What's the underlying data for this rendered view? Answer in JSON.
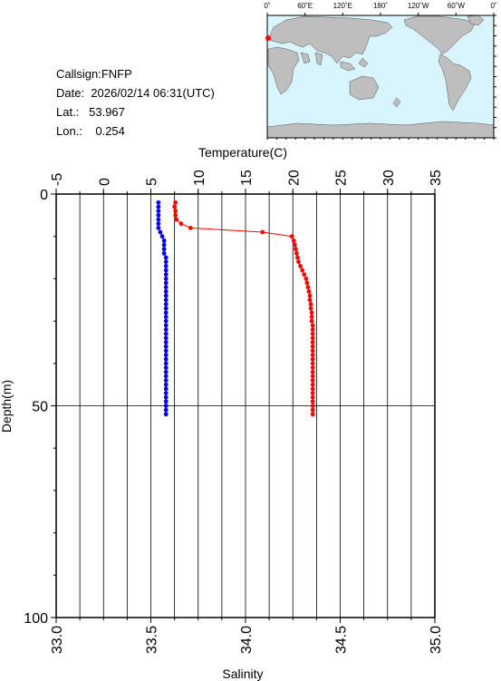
{
  "header": {
    "callsign": "Callsign:FNFP",
    "date": "Date:  2026/02/14 06:31(UTC)",
    "lat": "Lat.:   53.967",
    "lon": "Lon.:    0.254"
  },
  "map": {
    "top_labels": [
      "0˚",
      "60˚E",
      "120˚E",
      "180˚",
      "120˚W",
      "60˚W",
      "0˚"
    ],
    "left_labels": [
      "60˚N",
      "0˚",
      "60˚S"
    ],
    "ocean_color": "#d8f4fc",
    "land_color": "#bebebe",
    "station_color": "#ff0000"
  },
  "chart_data": {
    "type": "line",
    "top_axis": {
      "label": "Temperature(C)",
      "range": [
        -5,
        35
      ],
      "ticks": [
        "-5",
        "0",
        "5",
        "10",
        "15",
        "20",
        "25",
        "30",
        "35"
      ]
    },
    "bottom_axis": {
      "label": "Salinity",
      "range": [
        33.0,
        35.0
      ],
      "ticks": [
        "33.0",
        "33.5",
        "34.0",
        "34.5",
        "35.0"
      ]
    },
    "left_axis": {
      "label": "Depth(m)",
      "range": [
        0,
        100
      ],
      "inverted": true,
      "ticks": [
        "0",
        "50",
        "100"
      ]
    },
    "grid": true,
    "series": [
      {
        "quantity": "temperature",
        "axis": "top",
        "color": "#ff0000",
        "depth": [
          2,
          3,
          4,
          5,
          6,
          7,
          8,
          9,
          10,
          11,
          12,
          13,
          14,
          15,
          16,
          17,
          18,
          19,
          20,
          21,
          22,
          23,
          24,
          25,
          26,
          27,
          28,
          29,
          30,
          31,
          32,
          33,
          34,
          35,
          36,
          37,
          38,
          39,
          40,
          41,
          42,
          43,
          44,
          45,
          46,
          47,
          48,
          49,
          50,
          51,
          52
        ],
        "values": [
          7.6,
          7.5,
          7.6,
          7.6,
          7.7,
          8.2,
          9.2,
          16.8,
          19.9,
          20.1,
          20.2,
          20.3,
          20.4,
          20.5,
          20.6,
          20.8,
          21.0,
          21.2,
          21.4,
          21.5,
          21.6,
          21.7,
          21.8,
          21.8,
          21.9,
          21.9,
          22.0,
          22.0,
          22.0,
          22.1,
          22.1,
          22.1,
          22.1,
          22.1,
          22.1,
          22.1,
          22.1,
          22.1,
          22.1,
          22.1,
          22.1,
          22.1,
          22.1,
          22.1,
          22.1,
          22.1,
          22.1,
          22.1,
          22.1,
          22.1,
          22.1
        ]
      },
      {
        "quantity": "salinity",
        "axis": "bottom",
        "color": "#0000ff",
        "depth": [
          2,
          3,
          4,
          5,
          6,
          7,
          8,
          9,
          10,
          11,
          12,
          13,
          14,
          15,
          16,
          17,
          18,
          19,
          20,
          21,
          22,
          23,
          24,
          25,
          26,
          27,
          28,
          29,
          30,
          31,
          32,
          33,
          34,
          35,
          36,
          37,
          38,
          39,
          40,
          41,
          42,
          43,
          44,
          45,
          46,
          47,
          48,
          49,
          50,
          51,
          52
        ],
        "values": [
          33.54,
          33.54,
          33.54,
          33.54,
          33.54,
          33.54,
          33.54,
          33.55,
          33.56,
          33.57,
          33.57,
          33.57,
          33.57,
          33.58,
          33.58,
          33.58,
          33.58,
          33.58,
          33.58,
          33.58,
          33.58,
          33.58,
          33.58,
          33.58,
          33.58,
          33.58,
          33.58,
          33.58,
          33.58,
          33.58,
          33.58,
          33.58,
          33.58,
          33.58,
          33.58,
          33.58,
          33.58,
          33.58,
          33.58,
          33.58,
          33.58,
          33.58,
          33.58,
          33.58,
          33.58,
          33.58,
          33.58,
          33.58,
          33.58,
          33.58,
          33.58
        ]
      }
    ]
  }
}
